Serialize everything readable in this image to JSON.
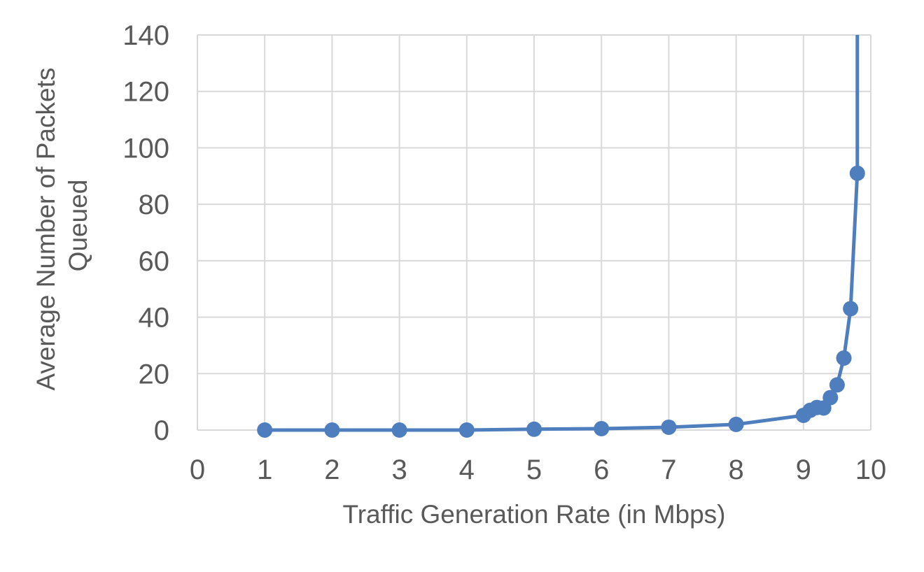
{
  "chart_data": {
    "type": "scatter",
    "xlabel": "Traffic Generation Rate (in Mbps)",
    "ylabel_lines": [
      "Average Number of Packets",
      "Queued"
    ],
    "xlim": [
      0,
      10
    ],
    "ylim": [
      0,
      140
    ],
    "x_ticks": [
      "0",
      "1",
      "2",
      "3",
      "4",
      "5",
      "6",
      "7",
      "8",
      "9",
      "10"
    ],
    "y_ticks": [
      "0",
      "20",
      "40",
      "60",
      "80",
      "100",
      "120",
      "140"
    ],
    "grid": true,
    "series": [
      {
        "color": "#4e7ebd",
        "x": [
          1,
          2,
          3,
          4,
          5,
          6,
          7,
          8,
          9,
          9.1,
          9.2,
          9.3,
          9.4,
          9.5,
          9.6,
          9.7,
          9.8
        ],
        "y": [
          0,
          0,
          0,
          0,
          0.3,
          0.5,
          1,
          2,
          5.2,
          7,
          8,
          7.8,
          11.5,
          16,
          25.5,
          43,
          91
        ]
      }
    ],
    "curve_continues_to": {
      "x": 9.8,
      "y": 140
    }
  }
}
